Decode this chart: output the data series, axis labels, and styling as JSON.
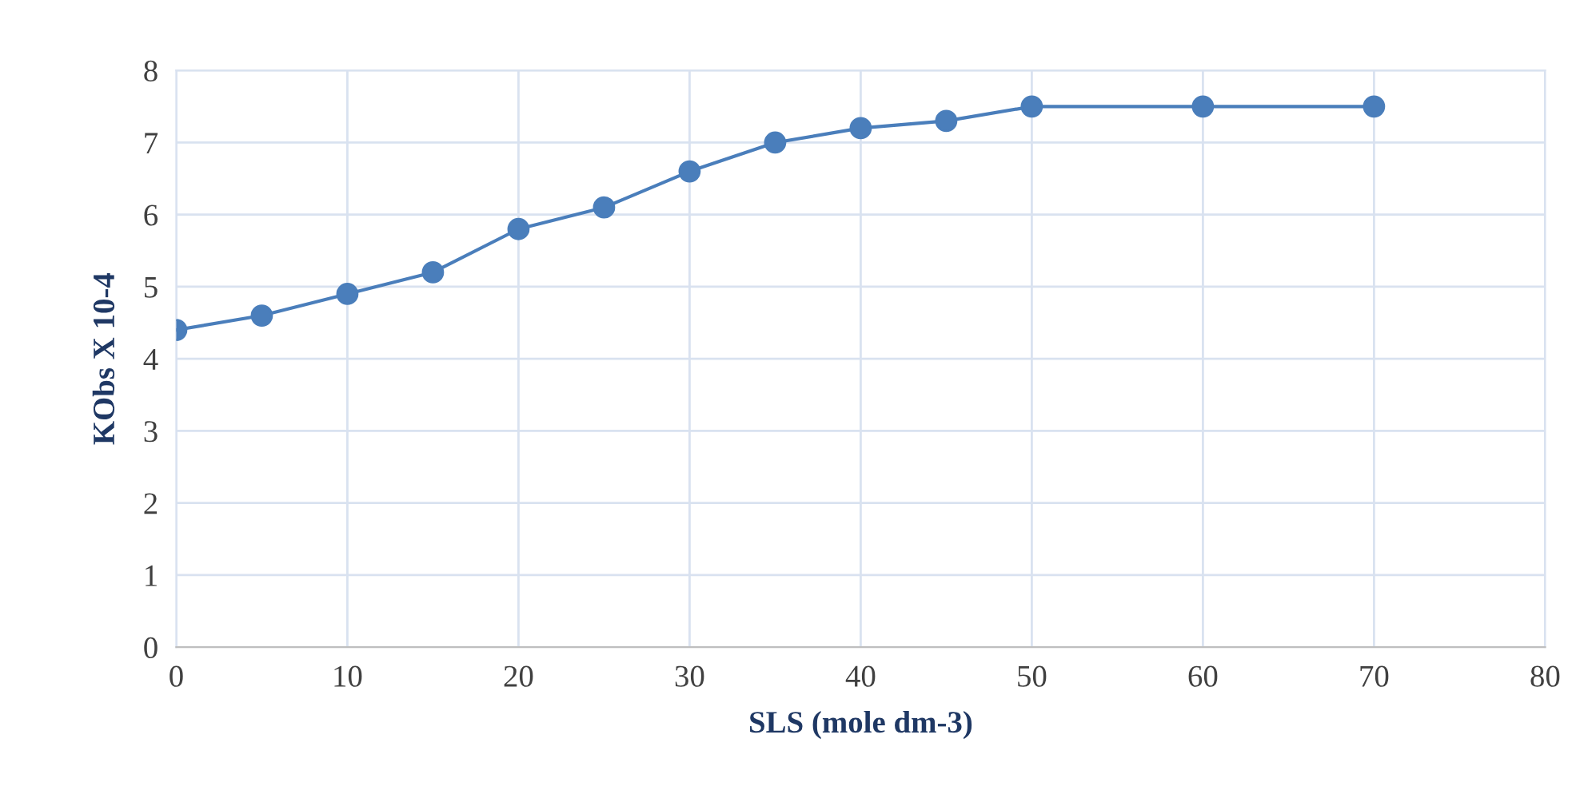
{
  "chart_data": {
    "type": "line",
    "xlabel": "SLS (mole dm-3)",
    "ylabel": "KObs X 10-4",
    "x": [
      0,
      5,
      10,
      15,
      20,
      25,
      30,
      35,
      40,
      45,
      50,
      60,
      70
    ],
    "series": [
      {
        "color": "#4a7ebb",
        "values": [
          4.4,
          4.6,
          4.9,
          5.2,
          5.8,
          6.1,
          6.6,
          7.0,
          7.2,
          7.3,
          7.5,
          7.5,
          7.5
        ]
      }
    ],
    "xlim": [
      0,
      80
    ],
    "xticks": [
      0,
      10,
      20,
      30,
      40,
      50,
      60,
      70,
      80
    ],
    "ylim": [
      0,
      8
    ],
    "yticks": [
      0,
      1,
      2,
      3,
      4,
      5,
      6,
      7,
      8
    ],
    "grid": true,
    "marker": "circle",
    "line_style": "solid"
  }
}
